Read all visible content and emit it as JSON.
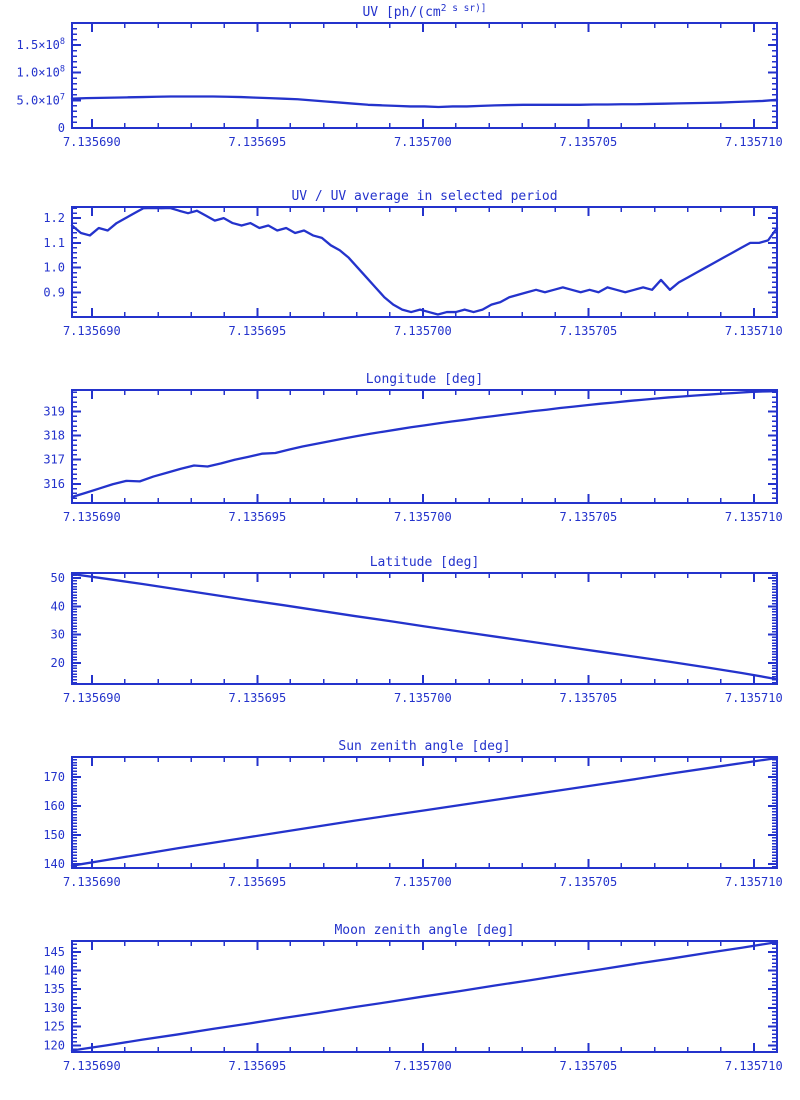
{
  "page": {
    "background": "#ffffff",
    "accent_color": "#2433cc"
  },
  "chart_data": [
    {
      "type": "line",
      "title": "UV [ph/(cm^2 s sr)]",
      "xlabel": "",
      "ylabel": "",
      "xlim": [
        7.1356894,
        7.1357107
      ],
      "xticks": [
        7.13569,
        7.135695,
        7.1357,
        7.135705,
        7.13571
      ],
      "xtick_labels": [
        "7.135690",
        "7.135695",
        "7.135700",
        "7.135705",
        "7.135710"
      ],
      "x_minor_interval": 1e-06,
      "ylim": [
        0,
        190000000
      ],
      "yticks": [
        0,
        50000000,
        100000000,
        150000000
      ],
      "ytick_labels": [
        "0",
        "5.0×10^7",
        "1.0×10^8",
        "1.5×10^8"
      ],
      "y_minor_interval": 10000000,
      "grid": false,
      "legend": null,
      "values": [
        53000000,
        54000000,
        54500000,
        55000000,
        55500000,
        56000000,
        56500000,
        57000000,
        57000000,
        57000000,
        57000000,
        56500000,
        56000000,
        55000000,
        54000000,
        53000000,
        52000000,
        50000000,
        48000000,
        46000000,
        44000000,
        42000000,
        41000000,
        40000000,
        39000000,
        39000000,
        38000000,
        39000000,
        39000000,
        40000000,
        41000000,
        41500000,
        42000000,
        42000000,
        42000000,
        42000000,
        42000000,
        42500000,
        42500000,
        43000000,
        43000000,
        43500000,
        44000000,
        44500000,
        45000000,
        45500000,
        46000000,
        47000000,
        48000000,
        49000000,
        51000000
      ]
    },
    {
      "type": "line",
      "title": "UV / UV average in selected period",
      "xlabel": "",
      "ylabel": "",
      "xlim": [
        7.1356894,
        7.1357107
      ],
      "xticks": [
        7.13569,
        7.135695,
        7.1357,
        7.135705,
        7.13571
      ],
      "xtick_labels": [
        "7.135690",
        "7.135695",
        "7.135700",
        "7.135705",
        "7.135710"
      ],
      "x_minor_interval": 1e-06,
      "ylim": [
        0.8,
        1.245
      ],
      "yticks": [
        0.9,
        1.0,
        1.1,
        1.2
      ],
      "ytick_labels": [
        "0.9",
        "1.0",
        "1.1",
        "1.2"
      ],
      "y_minor_interval": 0.02,
      "grid": false,
      "legend": null,
      "values": [
        1.17,
        1.14,
        1.13,
        1.16,
        1.15,
        1.18,
        1.2,
        1.22,
        1.24,
        1.25,
        1.24,
        1.25,
        1.23,
        1.22,
        1.23,
        1.21,
        1.19,
        1.2,
        1.18,
        1.17,
        1.18,
        1.16,
        1.17,
        1.15,
        1.16,
        1.14,
        1.15,
        1.13,
        1.12,
        1.09,
        1.07,
        1.04,
        1.0,
        0.96,
        0.92,
        0.88,
        0.85,
        0.83,
        0.82,
        0.83,
        0.82,
        0.81,
        0.82,
        0.82,
        0.83,
        0.82,
        0.83,
        0.85,
        0.86,
        0.88,
        0.89,
        0.9,
        0.91,
        0.9,
        0.91,
        0.92,
        0.91,
        0.9,
        0.91,
        0.9,
        0.92,
        0.91,
        0.9,
        0.91,
        0.92,
        0.91,
        0.95,
        0.91,
        0.94,
        0.96,
        0.98,
        1.0,
        1.02,
        1.04,
        1.06,
        1.08,
        1.1,
        1.1,
        1.11,
        1.16
      ]
    },
    {
      "type": "line",
      "title": "Longitude [deg]",
      "xlabel": "",
      "ylabel": "",
      "xlim": [
        7.1356894,
        7.1357107
      ],
      "xticks": [
        7.13569,
        7.135695,
        7.1357,
        7.135705,
        7.13571
      ],
      "xtick_labels": [
        "7.135690",
        "7.135695",
        "7.135700",
        "7.135705",
        "7.135710"
      ],
      "x_minor_interval": 1e-06,
      "ylim": [
        315.2,
        319.9
      ],
      "yticks": [
        316,
        317,
        318,
        319
      ],
      "ytick_labels": [
        "316",
        "317",
        "318",
        "319"
      ],
      "y_minor_interval": 0.2,
      "grid": false,
      "legend": null,
      "values": [
        315.45,
        315.62,
        315.8,
        315.98,
        316.12,
        316.1,
        316.3,
        316.46,
        316.62,
        316.76,
        316.72,
        316.85,
        317.0,
        317.12,
        317.25,
        317.28,
        317.42,
        317.55,
        317.66,
        317.77,
        317.88,
        317.98,
        318.08,
        318.17,
        318.26,
        318.35,
        318.43,
        318.51,
        318.59,
        318.66,
        318.74,
        318.81,
        318.88,
        318.95,
        319.02,
        319.08,
        319.15,
        319.21,
        319.27,
        319.33,
        319.38,
        319.44,
        319.49,
        319.54,
        319.59,
        319.63,
        319.67,
        319.71,
        319.75,
        319.78,
        319.82,
        319.84,
        319.85
      ]
    },
    {
      "type": "line",
      "title": "Latitude [deg]",
      "xlabel": "",
      "ylabel": "",
      "xlim": [
        7.1356894,
        7.1357107
      ],
      "xticks": [
        7.13569,
        7.135695,
        7.1357,
        7.135705,
        7.13571
      ],
      "xtick_labels": [
        "7.135690",
        "7.135695",
        "7.135700",
        "7.135705",
        "7.135710"
      ],
      "x_minor_interval": 1e-06,
      "ylim": [
        12.5,
        51.8
      ],
      "yticks": [
        20,
        30,
        40,
        50
      ],
      "ytick_labels": [
        "20",
        "30",
        "40",
        "50"
      ],
      "y_minor_interval": 1,
      "grid": false,
      "legend": null,
      "values": [
        51.6,
        49.7,
        47.9,
        46.0,
        44.1,
        42.2,
        40.4,
        38.5,
        36.6,
        34.8,
        32.9,
        31.1,
        29.3,
        27.5,
        25.7,
        23.9,
        22.1,
        20.3,
        18.4,
        16.4,
        14.2
      ]
    },
    {
      "type": "line",
      "title": "Sun zenith angle [deg]",
      "xlabel": "",
      "ylabel": "",
      "xlim": [
        7.1356894,
        7.1357107
      ],
      "xticks": [
        7.13569,
        7.135695,
        7.1357,
        7.135705,
        7.13571
      ],
      "xtick_labels": [
        "7.135690",
        "7.135695",
        "7.135700",
        "7.135705",
        "7.135710"
      ],
      "x_minor_interval": 1e-06,
      "ylim": [
        138.6,
        176.9
      ],
      "yticks": [
        140,
        150,
        160,
        170
      ],
      "ytick_labels": [
        "140",
        "150",
        "160",
        "170"
      ],
      "y_minor_interval": 1,
      "grid": false,
      "legend": null,
      "values": [
        139.4,
        141.4,
        143.4,
        145.4,
        147.3,
        149.2,
        151.1,
        153.0,
        154.9,
        156.7,
        158.5,
        160.3,
        162.1,
        163.9,
        165.7,
        167.5,
        169.3,
        171.2,
        173.0,
        174.8,
        176.6
      ]
    },
    {
      "type": "line",
      "title": "Moon zenith angle [deg]",
      "xlabel": "",
      "ylabel": "",
      "xlim": [
        7.1356894,
        7.1357107
      ],
      "xticks": [
        7.13569,
        7.135695,
        7.1357,
        7.135705,
        7.13571
      ],
      "xtick_labels": [
        "7.135690",
        "7.135695",
        "7.135700",
        "7.135705",
        "7.135710"
      ],
      "x_minor_interval": 1e-06,
      "ylim": [
        118.2,
        147.9
      ],
      "yticks": [
        120,
        125,
        130,
        135,
        140,
        145
      ],
      "ytick_labels": [
        "120",
        "125",
        "130",
        "135",
        "140",
        "145"
      ],
      "y_minor_interval": 1,
      "grid": false,
      "legend": null,
      "values": [
        118.6,
        120.0,
        121.5,
        122.9,
        124.4,
        125.8,
        127.3,
        128.7,
        130.2,
        131.6,
        133.1,
        134.5,
        136.0,
        137.4,
        138.9,
        140.3,
        141.8,
        143.2,
        144.7,
        146.1,
        147.6
      ]
    }
  ]
}
